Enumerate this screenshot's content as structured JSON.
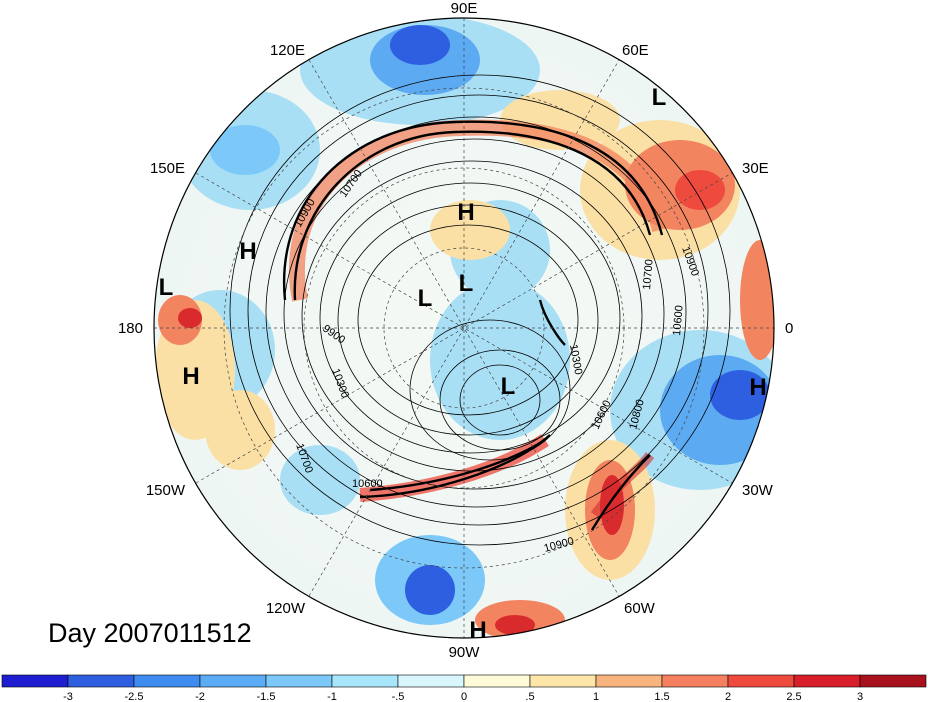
{
  "figure": {
    "day_label": "Day 2007011512"
  },
  "longitude_labels": {
    "deg90e": "90E",
    "deg60e": "60E",
    "deg30e": "30E",
    "deg0": "0",
    "deg30w": "30W",
    "deg60w": "60W",
    "deg90w": "90W",
    "deg120w": "120W",
    "deg150w": "150W",
    "deg180": "180",
    "deg150e": "150E",
    "deg120e": "120E"
  },
  "pressure_centers": [
    {
      "name": "H",
      "lon_hint": "north-pacific"
    },
    {
      "name": "L"
    }
  ],
  "contour_labels": {
    "c1": "10900",
    "c2": "10700",
    "c3": "9900",
    "c4": "10300",
    "c5": "10700",
    "c6": "10600",
    "c7": "10800",
    "c8": "10300",
    "c9": "10700",
    "c10": "10900",
    "c11": "10600",
    "c12": "10900",
    "c13": "10600",
    "c14": "10800"
  },
  "highs_lows": {
    "h1": "H",
    "h2": "H",
    "h3": "H",
    "h4": "H",
    "h5": "H",
    "l1": "L",
    "l2": "L",
    "l3": "L",
    "l4": "L",
    "l5": "L"
  },
  "colorbar": {
    "labels": [
      "-3",
      "-2.5",
      "-2",
      "-1.5",
      "-1",
      "-.5",
      "0",
      ".5",
      "1",
      "1.5",
      "2",
      "2.5",
      "3"
    ],
    "colors": [
      "#1e1ed0",
      "#2e5fe0",
      "#3f8cf0",
      "#5cabf5",
      "#7cc8f8",
      "#a8e6fb",
      "#d8f6fb",
      "#fffbd8",
      "#fde6a8",
      "#f8b47e",
      "#f48060",
      "#ee4a3e",
      "#d81e2a",
      "#a8101e"
    ]
  },
  "colors": {
    "cold_strong": "#1e3fd8",
    "cold": "#5caaf2",
    "cool": "#a9dff5",
    "neutral": "#f1f8f2",
    "warm": "#fbe0a6",
    "hot": "#f28460",
    "hot_strong": "#d92b2e"
  }
}
